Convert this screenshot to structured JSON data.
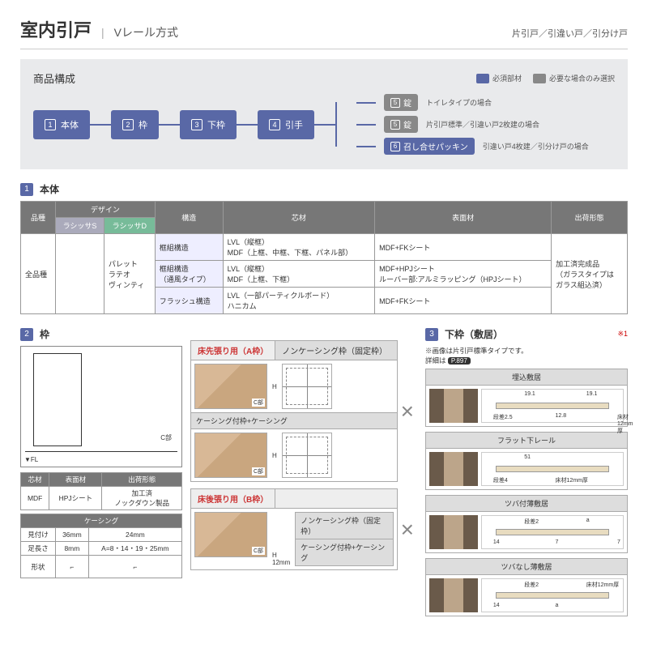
{
  "header": {
    "title": "室内引戸",
    "subtitle": "Vレール方式",
    "right": "片引戸／引違い戸／引分け戸"
  },
  "composition": {
    "title": "商品構成",
    "legend_req": "必須部材",
    "legend_opt": "必要な場合のみ選択",
    "steps": [
      "本体",
      "枠",
      "下枠",
      "引手"
    ],
    "branches": [
      {
        "num": "5",
        "label": "錠",
        "type": "gray",
        "desc": "トイレタイプの場合"
      },
      {
        "num": "5",
        "label": "錠",
        "type": "gray",
        "desc": "片引戸標準／引違い戸2枚建の場合"
      },
      {
        "num": "6",
        "label": "召し合せパッキン",
        "type": "blue",
        "desc": "引違い戸4枚建／引分け戸の場合"
      }
    ]
  },
  "sec1": {
    "num": "1",
    "title": "本体"
  },
  "table1": {
    "headers": [
      "品種",
      "デザイン",
      "",
      "構造",
      "芯材",
      "表面材",
      "出荷形態"
    ],
    "sub": [
      "ラシッサS",
      "ラシッサD"
    ],
    "body_col1": "全品種",
    "designs": [
      "パレット",
      "ラテオ",
      "ヴィンティ"
    ],
    "rows": [
      {
        "st": "框組構造",
        "core": "LVL（縦框）\nMDF（上框、中框、下框、パネル部）",
        "face": "MDF+FKシート"
      },
      {
        "st": "框組構造\n（通風タイプ）",
        "core": "LVL（縦框）\nMDF（上框、下框）",
        "face": "MDF+HPJシート\nルーバー部:アルミラッピング（HPJシート）"
      },
      {
        "st": "フラッシュ構造",
        "core": "LVL（一部パーティクルボード）\nハニカム",
        "face": "MDF+FKシート"
      }
    ],
    "ship": "加工済完成品\n（ガラスタイプは\nガラス組込済）"
  },
  "sec2": {
    "num": "2",
    "title": "枠"
  },
  "sec3": {
    "num": "3",
    "title": "下枠（敷居）",
    "note": "※1"
  },
  "frame": {
    "fl": "▼FL",
    "cpart": "C部",
    "mat_h": [
      "芯材",
      "表面材",
      "出荷形態"
    ],
    "mat_r": [
      "MDF",
      "HPJシート",
      "加工済\nノックダウン製品"
    ],
    "case_h": "ケーシング",
    "case_r1": [
      "見付け",
      "36mm",
      "24mm"
    ],
    "case_r2": [
      "足長さ",
      "8mm",
      "A=8・14・19・25mm"
    ],
    "case_r3": "形状"
  },
  "mid": {
    "a_label": "床先張り用（A枠）",
    "b_label": "床後張り用（B枠）",
    "nk": "ノンケーシング枠（固定枠）",
    "kc": "ケーシング付枠+ケーシング",
    "h": "H",
    "d12": "12mm"
  },
  "right": {
    "note1": "※画像は片引戸標準タイプです。",
    "note2": "詳細は",
    "pill": "P.897",
    "items": [
      {
        "t": "埋込敷居",
        "dims": [
          "段差2.5",
          "19.1",
          "12.8",
          "19.1",
          "床材12mm厚"
        ]
      },
      {
        "t": "フラット下レール",
        "dims": [
          "段差4",
          "51",
          "床材12mm厚"
        ]
      },
      {
        "t": "ツバ付薄敷居",
        "dims": [
          "14",
          "段差2",
          "7",
          "a",
          "7",
          "床材12mm厚"
        ]
      },
      {
        "t": "ツバなし薄敷居",
        "dims": [
          "14",
          "段差2",
          "a",
          "床材12mm厚"
        ]
      }
    ]
  }
}
